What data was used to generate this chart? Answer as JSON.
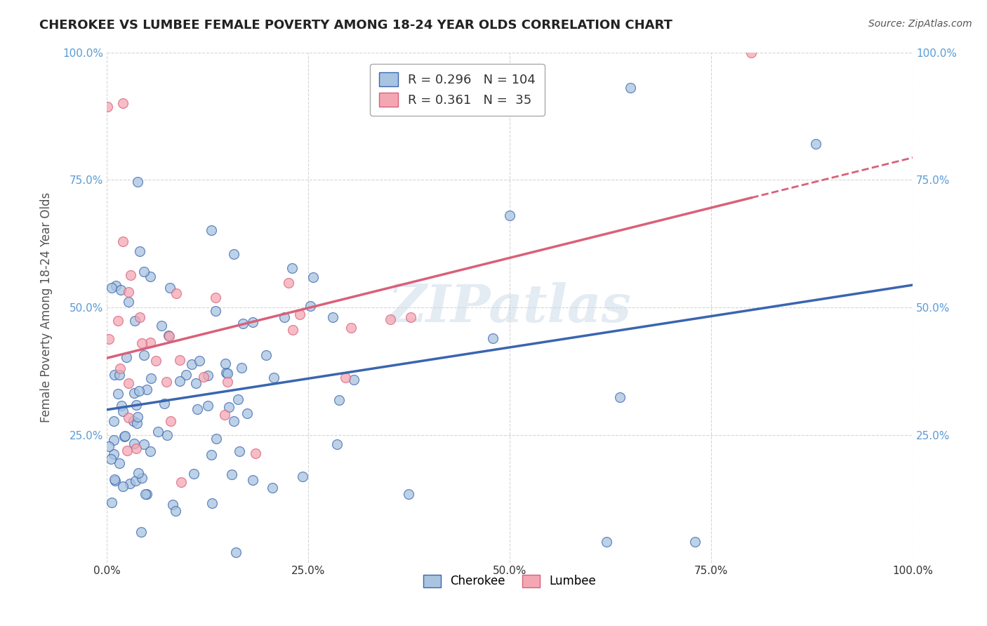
{
  "title": "CHEROKEE VS LUMBEE FEMALE POVERTY AMONG 18-24 YEAR OLDS CORRELATION CHART",
  "source": "Source: ZipAtlas.com",
  "ylabel": "Female Poverty Among 18-24 Year Olds",
  "xlim": [
    0,
    1
  ],
  "ylim": [
    0,
    1
  ],
  "xtick_labels": [
    "0.0%",
    "25.0%",
    "50.0%",
    "75.0%",
    "100.0%"
  ],
  "xtick_vals": [
    0,
    0.25,
    0.5,
    0.75,
    1.0
  ],
  "ytick_vals": [
    0,
    0.25,
    0.5,
    0.75,
    1.0
  ],
  "cherokee_color": "#a8c4e0",
  "lumbee_color": "#f4a7b3",
  "cherokee_line_color": "#3a65b0",
  "lumbee_line_color": "#d9607a",
  "cherokee_R": 0.296,
  "cherokee_N": 104,
  "lumbee_R": 0.361,
  "lumbee_N": 35,
  "background_color": "#ffffff",
  "grid_color": "#cccccc",
  "watermark": "ZIPatlas",
  "tick_color": "#5b9bd5",
  "title_color": "#222222",
  "ylabel_color": "#555555"
}
